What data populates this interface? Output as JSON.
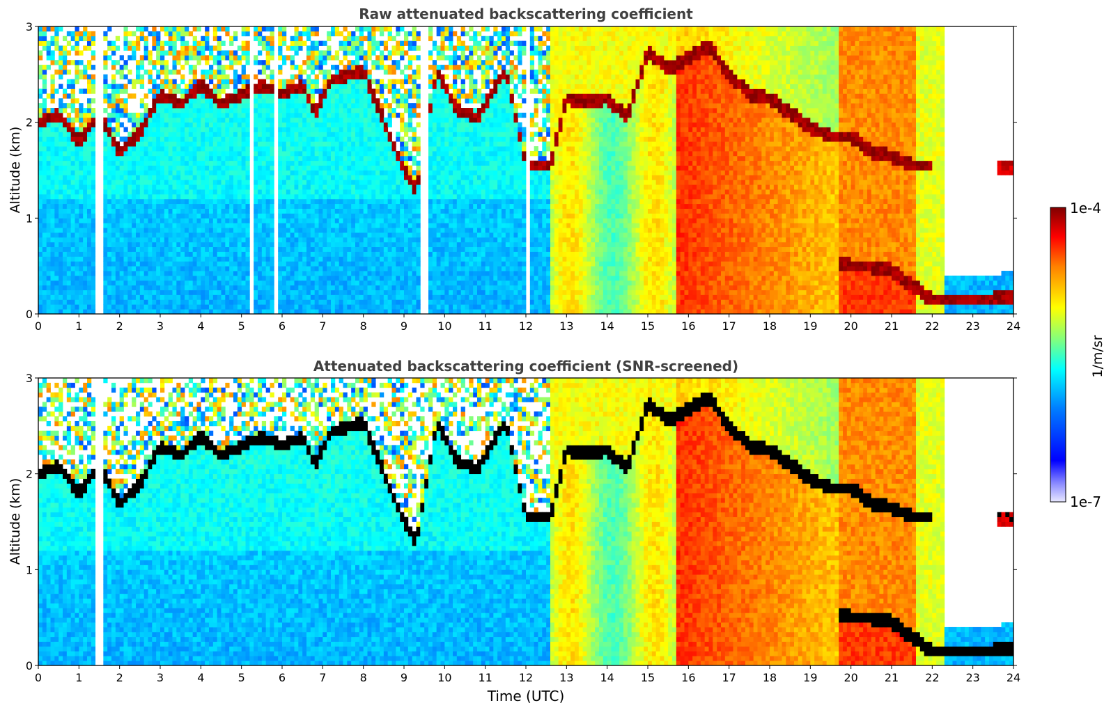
{
  "chart_data": [
    {
      "type": "heatmap",
      "title": "Raw attenuated backscattering coefficient",
      "xlabel": "",
      "ylabel": "Altitude (km)",
      "xlim": [
        0,
        24
      ],
      "ylim": [
        0,
        3
      ],
      "x_ticks": [
        "0",
        "1",
        "2",
        "3",
        "4",
        "5",
        "6",
        "7",
        "8",
        "9",
        "10",
        "11",
        "12",
        "13",
        "14",
        "15",
        "16",
        "17",
        "18",
        "19",
        "20",
        "21",
        "22",
        "23",
        "24"
      ],
      "y_ticks": [
        "0",
        "1",
        "2",
        "3"
      ],
      "cloud_base_height_km": [
        [
          0.0,
          2.0
        ],
        [
          0.5,
          2.1
        ],
        [
          1.0,
          1.8
        ],
        [
          1.5,
          2.1
        ],
        [
          2.0,
          1.7
        ],
        [
          2.5,
          1.9
        ],
        [
          3.0,
          2.3
        ],
        [
          3.5,
          2.2
        ],
        [
          4.0,
          2.4
        ],
        [
          4.5,
          2.2
        ],
        [
          5.0,
          2.3
        ],
        [
          5.5,
          2.4
        ],
        [
          6.0,
          2.3
        ],
        [
          6.5,
          2.4
        ],
        [
          6.8,
          2.1
        ],
        [
          7.2,
          2.45
        ],
        [
          8.0,
          2.55
        ],
        [
          8.9,
          1.6
        ],
        [
          9.3,
          1.3
        ],
        [
          9.8,
          2.55
        ],
        [
          10.3,
          2.15
        ],
        [
          10.8,
          2.05
        ],
        [
          11.2,
          2.35
        ],
        [
          11.5,
          2.55
        ],
        [
          12.0,
          1.55
        ],
        [
          12.6,
          1.55
        ],
        [
          13.0,
          2.25
        ],
        [
          13.5,
          2.2
        ],
        [
          14.0,
          2.25
        ],
        [
          14.5,
          2.05
        ],
        [
          15.0,
          2.75
        ],
        [
          15.5,
          2.55
        ],
        [
          16.5,
          2.8
        ],
        [
          17.0,
          2.5
        ],
        [
          17.5,
          2.3
        ],
        [
          18.0,
          2.25
        ],
        [
          18.5,
          2.1
        ],
        [
          19.0,
          1.95
        ],
        [
          19.5,
          1.85
        ],
        [
          20.0,
          1.85
        ],
        [
          20.5,
          1.7
        ],
        [
          21.0,
          1.65
        ],
        [
          21.5,
          1.55
        ],
        [
          22.0,
          1.55
        ]
      ],
      "low_layer_height_km": [
        [
          19.7,
          0.55
        ],
        [
          20.0,
          0.5
        ],
        [
          20.5,
          0.5
        ],
        [
          21.0,
          0.45
        ],
        [
          21.5,
          0.3
        ],
        [
          22.0,
          0.15
        ],
        [
          22.5,
          0.15
        ],
        [
          23.0,
          0.15
        ],
        [
          23.5,
          0.15
        ],
        [
          24.0,
          0.2
        ]
      ],
      "colorbar": {
        "label": "1/m/sr",
        "vmin_label": "1e-7",
        "vmax_label": "1e-4",
        "scale": "log"
      }
    },
    {
      "type": "heatmap",
      "title": "Attenuated backscattering coefficient (SNR-screened)",
      "xlabel": "Time (UTC)",
      "ylabel": "Altitude (km)",
      "xlim": [
        0,
        24
      ],
      "ylim": [
        0,
        3
      ],
      "x_ticks": [
        "0",
        "1",
        "2",
        "3",
        "4",
        "5",
        "6",
        "7",
        "8",
        "9",
        "10",
        "11",
        "12",
        "13",
        "14",
        "15",
        "16",
        "17",
        "18",
        "19",
        "20",
        "21",
        "22",
        "23",
        "24"
      ],
      "y_ticks": [
        "0",
        "1",
        "2",
        "3"
      ],
      "colorbar": {
        "label": "1/m/sr",
        "vmin_label": "1e-7",
        "vmax_label": "1e-4",
        "scale": "log"
      }
    }
  ],
  "colors": {
    "jet": [
      "#00008f",
      "#0000ff",
      "#0080ff",
      "#00ffff",
      "#80ff80",
      "#ffff00",
      "#ff8000",
      "#ff0000",
      "#800000"
    ],
    "saturated_screened": "#000000",
    "title_text": "#404040"
  }
}
